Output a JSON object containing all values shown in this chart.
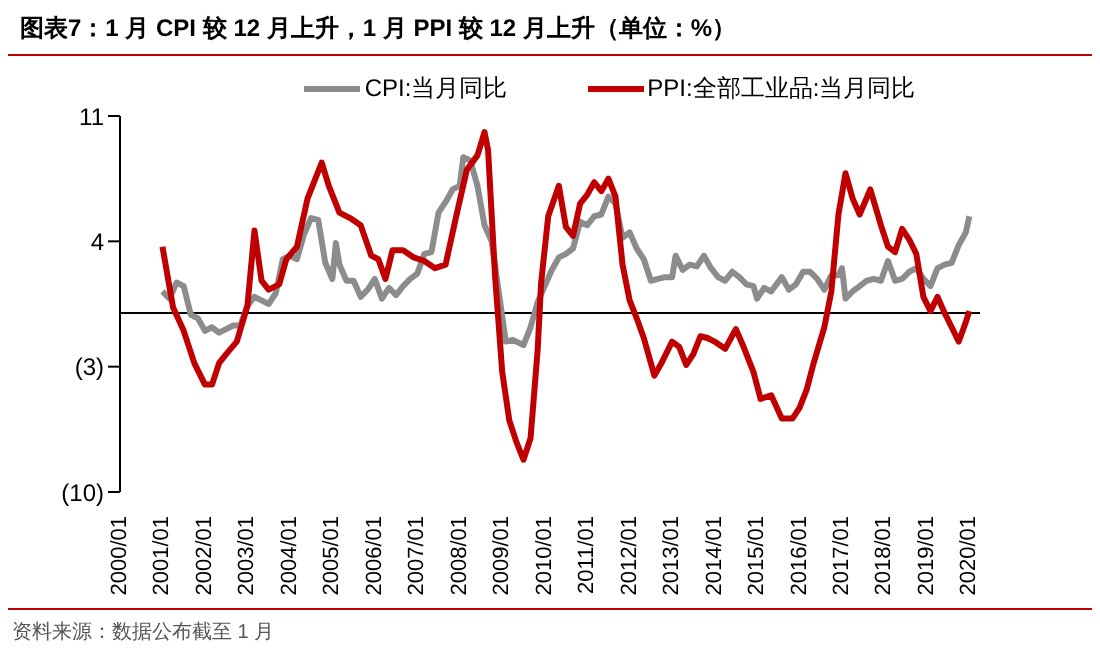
{
  "chart_data": {
    "type": "line",
    "title": "图表7：1 月 CPI 较 12 月上升，1 月 PPI 较 12 月上升（单位：%）",
    "annotations": [
      "资料来源：数据公布截至 1 月"
    ],
    "legend": "top",
    "xlim": [
      "2000-01",
      "2020-04"
    ],
    "xticks": [
      {
        "value": "2000-01",
        "label": "2000/01"
      },
      {
        "value": "2001-01",
        "label": "2001/01"
      },
      {
        "value": "2002-01",
        "label": "2002/01"
      },
      {
        "value": "2003-01",
        "label": "2003/01"
      },
      {
        "value": "2004-01",
        "label": "2004/01"
      },
      {
        "value": "2005-01",
        "label": "2005/01"
      },
      {
        "value": "2006-01",
        "label": "2006/01"
      },
      {
        "value": "2007-01",
        "label": "2007/01"
      },
      {
        "value": "2008-01",
        "label": "2008/01"
      },
      {
        "value": "2009-01",
        "label": "2009/01"
      },
      {
        "value": "2010-01",
        "label": "2010/01"
      },
      {
        "value": "2011-01",
        "label": "2011/01"
      },
      {
        "value": "2012-01",
        "label": "2012/01"
      },
      {
        "value": "2013-01",
        "label": "2013/01"
      },
      {
        "value": "2014-01",
        "label": "2014/01"
      },
      {
        "value": "2015-01",
        "label": "2015/01"
      },
      {
        "value": "2016-01",
        "label": "2016/01"
      },
      {
        "value": "2017-01",
        "label": "2017/01"
      },
      {
        "value": "2018-01",
        "label": "2018/01"
      },
      {
        "value": "2019-01",
        "label": "2019/01"
      },
      {
        "value": "2020-01",
        "label": "2020/01"
      }
    ],
    "ylim": [
      -10,
      11
    ],
    "yticks": [
      {
        "value": -10,
        "label": "(10)"
      },
      {
        "value": -3,
        "label": "(3)"
      },
      4,
      11
    ],
    "ref_lines": [
      {
        "axis": "y",
        "value": 0,
        "color": "#000000"
      }
    ],
    "series": [
      {
        "name": "CPI:当月同比",
        "color": "#8c8c8c",
        "x": [
          "2001-01",
          "2001-03",
          "2001-05",
          "2001-07",
          "2001-09",
          "2001-11",
          "2002-01",
          "2002-03",
          "2002-05",
          "2002-07",
          "2002-09",
          "2002-11",
          "2003-01",
          "2003-03",
          "2003-05",
          "2003-07",
          "2003-09",
          "2003-11",
          "2004-01",
          "2004-03",
          "2004-05",
          "2004-07",
          "2004-09",
          "2004-11",
          "2005-01",
          "2005-02",
          "2005-03",
          "2005-05",
          "2005-07",
          "2005-09",
          "2005-11",
          "2006-01",
          "2006-03",
          "2006-05",
          "2006-07",
          "2006-09",
          "2006-11",
          "2007-01",
          "2007-03",
          "2007-05",
          "2007-07",
          "2007-09",
          "2007-11",
          "2008-01",
          "2008-02",
          "2008-04",
          "2008-06",
          "2008-08",
          "2008-10",
          "2008-12",
          "2009-02",
          "2009-04",
          "2009-07",
          "2009-09",
          "2009-11",
          "2010-01",
          "2010-03",
          "2010-05",
          "2010-07",
          "2010-09",
          "2010-11",
          "2011-01",
          "2011-03",
          "2011-05",
          "2011-07",
          "2011-09",
          "2011-11",
          "2012-01",
          "2012-03",
          "2012-05",
          "2012-07",
          "2012-09",
          "2012-11",
          "2013-01",
          "2013-02",
          "2013-04",
          "2013-06",
          "2013-08",
          "2013-10",
          "2013-12",
          "2014-02",
          "2014-04",
          "2014-06",
          "2014-08",
          "2014-10",
          "2014-12",
          "2015-01",
          "2015-03",
          "2015-05",
          "2015-08",
          "2015-10",
          "2015-12",
          "2016-02",
          "2016-04",
          "2016-06",
          "2016-08",
          "2016-10",
          "2016-12",
          "2017-01",
          "2017-02",
          "2017-04",
          "2017-06",
          "2017-08",
          "2017-10",
          "2017-12",
          "2018-02",
          "2018-04",
          "2018-06",
          "2018-08",
          "2018-10",
          "2018-12",
          "2019-02",
          "2019-04",
          "2019-06",
          "2019-08",
          "2019-10",
          "2019-12",
          "2020-01"
        ],
        "values": [
          1.2,
          0.8,
          1.7,
          1.5,
          -0.1,
          -0.3,
          -1.0,
          -0.8,
          -1.1,
          -0.9,
          -0.7,
          -0.7,
          0.4,
          0.9,
          0.7,
          0.5,
          1.1,
          3.0,
          3.2,
          3.0,
          4.4,
          5.3,
          5.2,
          2.8,
          1.9,
          3.9,
          2.7,
          1.8,
          1.8,
          0.9,
          1.3,
          1.9,
          0.8,
          1.4,
          1.0,
          1.5,
          1.9,
          2.2,
          3.3,
          3.4,
          5.6,
          6.2,
          6.9,
          7.1,
          8.7,
          8.5,
          7.1,
          4.9,
          4.0,
          1.2,
          -1.6,
          -1.5,
          -1.8,
          -0.8,
          0.6,
          1.5,
          2.4,
          3.1,
          3.3,
          3.6,
          5.1,
          4.9,
          5.4,
          5.5,
          6.5,
          6.1,
          4.2,
          4.5,
          3.6,
          3.0,
          1.8,
          1.9,
          2.0,
          2.0,
          3.2,
          2.4,
          2.7,
          2.6,
          3.2,
          2.5,
          2.0,
          1.8,
          2.3,
          2.0,
          1.6,
          1.5,
          0.8,
          1.4,
          1.2,
          2.0,
          1.3,
          1.6,
          2.3,
          2.3,
          1.9,
          1.3,
          2.1,
          2.1,
          2.5,
          0.8,
          1.2,
          1.5,
          1.8,
          1.9,
          1.8,
          2.9,
          1.8,
          1.9,
          2.3,
          2.5,
          1.9,
          1.5,
          2.5,
          2.7,
          2.8,
          3.8,
          4.5,
          5.4
        ]
      },
      {
        "name": "PPI:全部工业品:当月同比",
        "color": "#c00000",
        "x": [
          "2001-01",
          "2001-04",
          "2001-07",
          "2001-10",
          "2002-01",
          "2002-03",
          "2002-05",
          "2002-07",
          "2002-10",
          "2003-01",
          "2003-03",
          "2003-05",
          "2003-07",
          "2003-10",
          "2003-12",
          "2004-03",
          "2004-06",
          "2004-10",
          "2004-12",
          "2005-03",
          "2005-06",
          "2005-09",
          "2005-12",
          "2006-02",
          "2006-04",
          "2006-06",
          "2006-09",
          "2006-12",
          "2007-03",
          "2007-06",
          "2007-09",
          "2007-12",
          "2008-03",
          "2008-06",
          "2008-08",
          "2008-09",
          "2008-11",
          "2009-01",
          "2009-03",
          "2009-05",
          "2009-07",
          "2009-09",
          "2009-11",
          "2009-12",
          "2010-02",
          "2010-05",
          "2010-07",
          "2010-09",
          "2010-11",
          "2011-01",
          "2011-03",
          "2011-05",
          "2011-07",
          "2011-09",
          "2011-11",
          "2012-01",
          "2012-03",
          "2012-05",
          "2012-08",
          "2012-10",
          "2013-01",
          "2013-03",
          "2013-05",
          "2013-07",
          "2013-09",
          "2013-11",
          "2014-01",
          "2014-04",
          "2014-07",
          "2014-09",
          "2014-12",
          "2015-02",
          "2015-05",
          "2015-08",
          "2015-11",
          "2016-01",
          "2016-03",
          "2016-05",
          "2016-08",
          "2016-10",
          "2016-12",
          "2017-02",
          "2017-04",
          "2017-06",
          "2017-09",
          "2017-12",
          "2018-02",
          "2018-04",
          "2018-06",
          "2018-08",
          "2018-10",
          "2018-12",
          "2019-02",
          "2019-04",
          "2019-06",
          "2019-08",
          "2019-10",
          "2019-12",
          "2020-01"
        ],
        "values": [
          3.7,
          0.3,
          -1.0,
          -2.8,
          -4.0,
          -4.0,
          -2.8,
          -2.3,
          -1.6,
          0.4,
          4.6,
          1.8,
          1.3,
          1.6,
          3.0,
          3.7,
          6.4,
          8.4,
          7.1,
          5.6,
          5.3,
          4.9,
          3.2,
          3.0,
          1.9,
          3.5,
          3.5,
          3.1,
          2.9,
          2.5,
          2.7,
          5.4,
          8.0,
          8.8,
          10.1,
          9.1,
          2.0,
          -3.3,
          -6.0,
          -7.2,
          -8.2,
          -7.0,
          -2.1,
          1.7,
          5.4,
          7.1,
          4.8,
          4.3,
          6.1,
          6.6,
          7.3,
          6.8,
          7.5,
          6.5,
          2.7,
          0.7,
          -0.3,
          -1.4,
          -3.5,
          -2.8,
          -1.6,
          -1.9,
          -2.9,
          -2.3,
          -1.3,
          -1.4,
          -1.6,
          -2.0,
          -0.9,
          -1.8,
          -3.3,
          -4.8,
          -4.6,
          -5.9,
          -5.9,
          -5.3,
          -4.3,
          -2.8,
          -0.8,
          1.2,
          5.5,
          7.8,
          6.4,
          5.5,
          6.9,
          4.9,
          3.7,
          3.4,
          4.7,
          4.1,
          3.3,
          0.9,
          0.1,
          0.9,
          0.0,
          -0.8,
          -1.6,
          -0.5,
          0.1
        ]
      }
    ]
  }
}
